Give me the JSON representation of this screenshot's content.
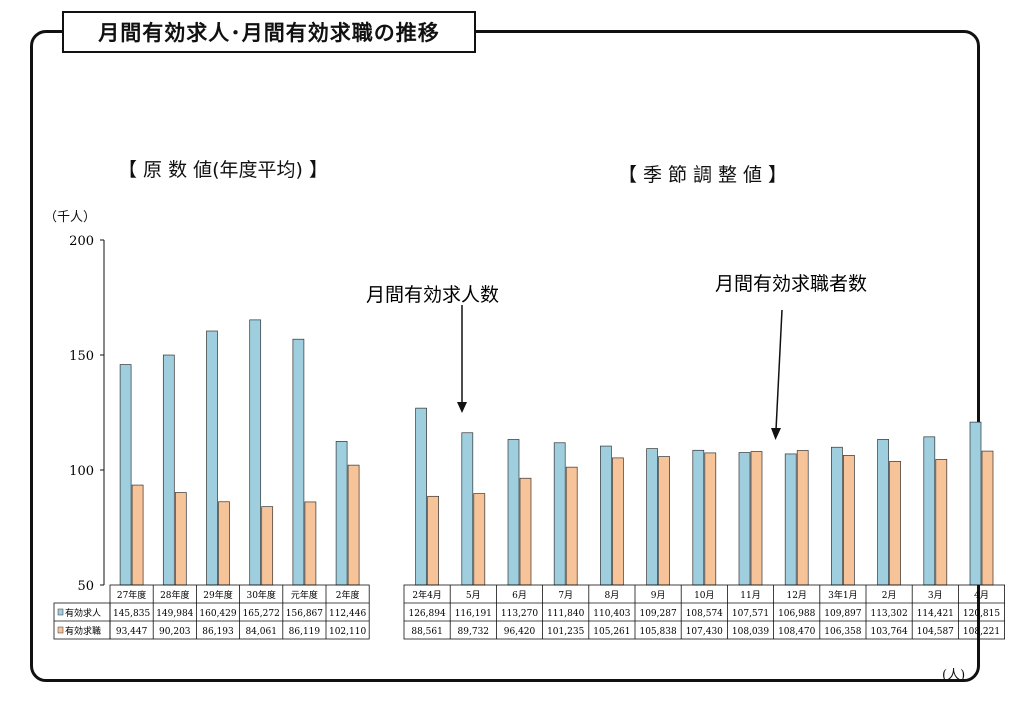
{
  "title": "月間有効求人･月間有効求職の推移",
  "headings": {
    "left": "【 原 数 値(年度平均) 】",
    "right": "【季節調整値】"
  },
  "units": {
    "left": "（千人）",
    "right": "(人)"
  },
  "annotations": {
    "openings": "月間有効求人数",
    "seekers": "月間有効求職者数"
  },
  "colors": {
    "openings": "#9fcfdf",
    "seekers": "#f7c49a",
    "frame": "#111111"
  },
  "chart_data": {
    "type": "bar",
    "ylim": [
      50,
      200
    ],
    "yticks": [
      50,
      100,
      150,
      200
    ],
    "groups": [
      {
        "name": "原数値",
        "categories": [
          "27年度",
          "28年度",
          "29年度",
          "30年度",
          "元年度",
          "2年度"
        ]
      },
      {
        "name": "季節調整値",
        "categories": [
          "2年4月",
          "5月",
          "6月",
          "7月",
          "8月",
          "9月",
          "10月",
          "11月",
          "12月",
          "3年1月",
          "2月",
          "3月",
          "4月"
        ]
      }
    ],
    "categories": [
      "27年度",
      "28年度",
      "29年度",
      "30年度",
      "元年度",
      "2年度",
      "2年4月",
      "5月",
      "6月",
      "7月",
      "8月",
      "9月",
      "10月",
      "11月",
      "12月",
      "3年1月",
      "2月",
      "3月",
      "4月"
    ],
    "series": [
      {
        "name": "有効求人",
        "color": "#9fcfdf",
        "values": [
          145835,
          149984,
          160429,
          165272,
          156867,
          112446,
          126894,
          116191,
          113270,
          111840,
          110403,
          109287,
          108574,
          107571,
          106988,
          109897,
          113302,
          114421,
          120815
        ],
        "labels": [
          "145,835",
          "149,984",
          "160,429",
          "165,272",
          "156,867",
          "112,446",
          "126,894",
          "116,191",
          "113,270",
          "111,840",
          "110,403",
          "109,287",
          "108,574",
          "107,571",
          "106,988",
          "109,897",
          "113,302",
          "114,421",
          "120,815"
        ]
      },
      {
        "name": "有効求職",
        "color": "#f7c49a",
        "values": [
          93447,
          90203,
          86193,
          84061,
          86119,
          102110,
          88561,
          89732,
          96420,
          101235,
          105261,
          105838,
          107430,
          108039,
          108470,
          106358,
          103764,
          104587,
          108221
        ],
        "labels": [
          "93,447",
          "90,203",
          "86,193",
          "84,061",
          "86,119",
          "102,110",
          "88,561",
          "89,732",
          "96,420",
          "101,235",
          "105,261",
          "105,838",
          "107,430",
          "108,039",
          "108,470",
          "106,358",
          "103,764",
          "104,587",
          "108,221"
        ]
      }
    ]
  }
}
